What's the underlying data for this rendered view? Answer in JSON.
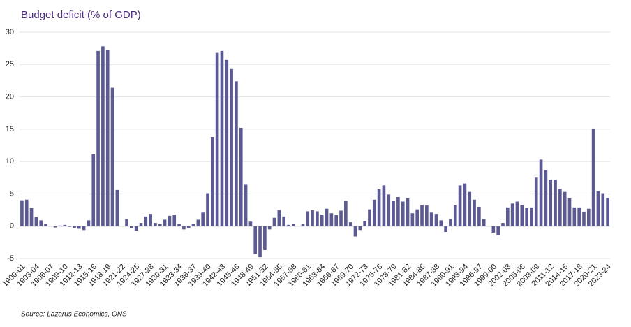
{
  "chart_data": {
    "type": "bar",
    "title": "Budget deficit (% of GDP)",
    "source": "Source: Lazarus Economics, ONS",
    "categories": [
      "1900-01",
      null,
      null,
      "1903-04",
      null,
      null,
      "1906-07",
      null,
      null,
      "1909-10",
      null,
      null,
      "1912-13",
      null,
      null,
      "1915-16",
      null,
      null,
      "1918-19",
      null,
      null,
      "1921-22",
      null,
      null,
      "1924-25",
      null,
      null,
      "1927-28",
      null,
      null,
      "1930-31",
      null,
      null,
      "1933-34",
      null,
      null,
      "1936-37",
      null,
      null,
      "1939-40",
      null,
      null,
      "1942-43",
      null,
      null,
      "1945-46",
      null,
      null,
      "1948-49",
      null,
      null,
      "1951-52",
      null,
      null,
      "1954-55",
      null,
      null,
      "1957-58",
      null,
      null,
      "1960-61",
      null,
      null,
      "1963-64",
      null,
      null,
      "1966-67",
      null,
      null,
      "1969-70",
      null,
      null,
      "1972-73",
      null,
      null,
      "1975-76",
      null,
      null,
      "1978-79",
      null,
      null,
      "1981-82",
      null,
      null,
      "1984-85",
      null,
      null,
      "1987-88",
      null,
      null,
      "1990-91",
      null,
      null,
      "1993-94",
      null,
      null,
      "1996-97",
      null,
      null,
      "1999-00",
      null,
      null,
      "2002-03",
      null,
      null,
      "2005-06",
      null,
      null,
      "2008-09",
      null,
      null,
      "2011-12",
      null,
      null,
      "2014-15",
      null,
      null,
      "2017-18",
      null,
      null,
      "2020-21",
      null,
      null,
      "2023-24"
    ],
    "values": [
      4.0,
      4.1,
      2.8,
      1.4,
      0.9,
      0.4,
      0.0,
      -0.2,
      0.1,
      0.2,
      -0.1,
      -0.3,
      -0.4,
      -0.6,
      0.9,
      11.1,
      27.1,
      27.8,
      27.2,
      21.4,
      5.6,
      0.0,
      1.1,
      -0.3,
      -0.7,
      0.5,
      1.5,
      1.9,
      0.5,
      0.3,
      1.0,
      1.6,
      1.8,
      0.3,
      -0.5,
      -0.3,
      0.4,
      1.0,
      2.1,
      5.1,
      13.8,
      26.8,
      27.1,
      25.7,
      24.3,
      22.4,
      15.2,
      6.4,
      0.7,
      -4.3,
      -4.8,
      -3.7,
      -0.5,
      1.3,
      2.5,
      1.5,
      0.2,
      0.4,
      0.0,
      0.3,
      2.3,
      2.5,
      2.3,
      1.8,
      2.7,
      2.0,
      1.7,
      2.4,
      3.9,
      0.6,
      -1.6,
      -0.6,
      0.8,
      2.6,
      4.1,
      5.7,
      6.3,
      4.9,
      3.9,
      4.5,
      3.8,
      4.3,
      2.0,
      2.6,
      3.3,
      3.2,
      2.1,
      1.9,
      0.9,
      -0.9,
      1.1,
      3.3,
      6.3,
      6.6,
      5.3,
      4.1,
      3.0,
      1.1,
      0.0,
      -1.0,
      -1.4,
      0.5,
      2.9,
      3.5,
      3.8,
      3.3,
      2.8,
      2.9,
      7.5,
      10.3,
      8.7,
      7.2,
      7.2,
      5.8,
      5.3,
      4.3,
      2.9,
      2.9,
      2.2,
      2.7,
      15.1,
      5.4,
      5.1,
      4.4
    ],
    "color": "#5c5a92",
    "ylim": [
      -5,
      30
    ],
    "yticks": [
      -5,
      0,
      5,
      10,
      15,
      20,
      25,
      30
    ],
    "grid": true
  }
}
